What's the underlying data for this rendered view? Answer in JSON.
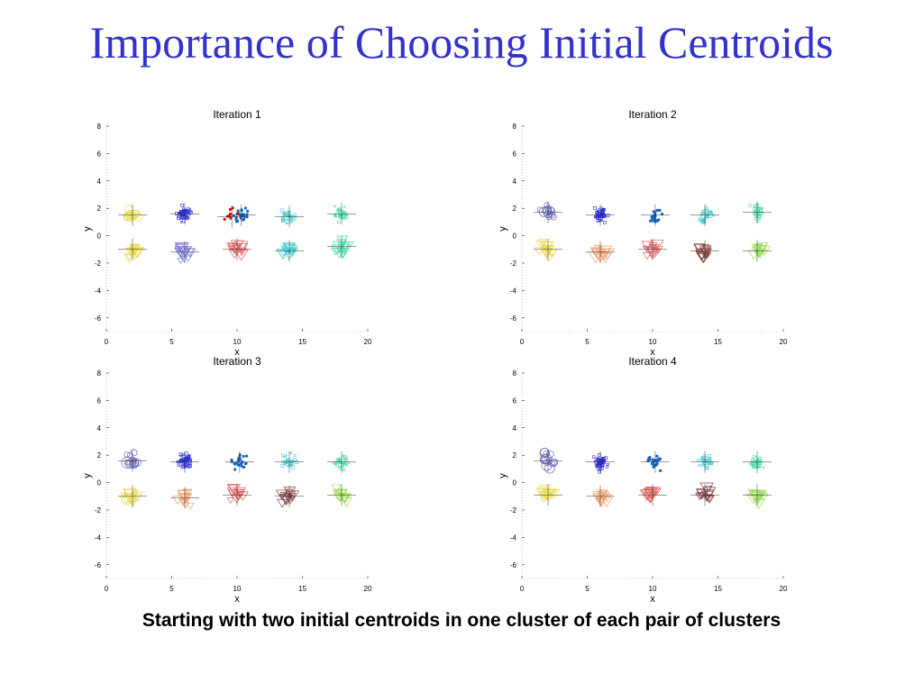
{
  "slide": {
    "title": "Importance of Choosing Initial Centroids",
    "caption": "Starting with two initial centroids in one cluster of each pair of clusters"
  },
  "chart_data": [
    {
      "type": "scatter",
      "title": "Iteration 1",
      "xlabel": "x",
      "ylabel": "y",
      "xlim": [
        0,
        20
      ],
      "ylim": [
        -7,
        8
      ],
      "xticks": [
        "0",
        "5",
        "10",
        "15",
        "20"
      ],
      "yticks": [
        "-6",
        "-4",
        "-2",
        "0",
        "2",
        "4",
        "6",
        "8"
      ],
      "clusters": [
        {
          "color": "#e8d84a",
          "marker": "circle",
          "center": [
            2,
            1.5
          ],
          "count": 14
        },
        {
          "color": "#e8d84a",
          "marker": "triangle",
          "center": [
            2,
            -1
          ],
          "count": 14
        },
        {
          "color": "#2a2ad8",
          "marker": "point",
          "center": [
            6,
            1.6
          ],
          "count": 50
        },
        {
          "color": "#7777dd",
          "marker": "triangle",
          "center": [
            6,
            -1.2
          ],
          "count": 14
        },
        {
          "color": "#1565c0",
          "marker": "dot",
          "center": [
            10.3,
            1.5
          ],
          "count": 22
        },
        {
          "color": "#dd0000",
          "marker": "dot",
          "center": [
            9.6,
            1.4
          ],
          "count": 8
        },
        {
          "color": "#e06060",
          "marker": "triangle",
          "center": [
            10,
            -1
          ],
          "count": 14
        },
        {
          "color": "#44cccc",
          "marker": "point",
          "center": [
            14,
            1.4
          ],
          "count": 30
        },
        {
          "color": "#44cccc",
          "marker": "triangle",
          "center": [
            14,
            -1.1
          ],
          "count": 14
        },
        {
          "color": "#44ddaa",
          "marker": "point",
          "center": [
            18,
            1.6
          ],
          "count": 30
        },
        {
          "color": "#44ddaa",
          "marker": "triangle",
          "center": [
            18,
            -0.8
          ],
          "count": 14
        }
      ]
    },
    {
      "type": "scatter",
      "title": "Iteration 2",
      "xlabel": "x",
      "ylabel": "y",
      "xlim": [
        0,
        20
      ],
      "ylim": [
        -7,
        8
      ],
      "xticks": [
        "0",
        "5",
        "10",
        "15",
        "20"
      ],
      "yticks": [
        "-6",
        "-4",
        "-2",
        "0",
        "2",
        "4",
        "6",
        "8"
      ],
      "clusters": [
        {
          "color": "#6666bb",
          "marker": "circle",
          "center": [
            2,
            1.7
          ],
          "count": 14
        },
        {
          "color": "#e8d84a",
          "marker": "triangle",
          "center": [
            2,
            -1
          ],
          "count": 14
        },
        {
          "color": "#2a2ad8",
          "marker": "point",
          "center": [
            6,
            1.5
          ],
          "count": 50
        },
        {
          "color": "#f0a070",
          "marker": "triangle",
          "center": [
            6,
            -1.2
          ],
          "count": 14
        },
        {
          "color": "#1565c0",
          "marker": "dot",
          "center": [
            10.2,
            1.5
          ],
          "count": 24
        },
        {
          "color": "#e06060",
          "marker": "triangle",
          "center": [
            10,
            -1
          ],
          "count": 14
        },
        {
          "color": "#44cccc",
          "marker": "point",
          "center": [
            14,
            1.5
          ],
          "count": 30
        },
        {
          "color": "#884444",
          "marker": "triangle",
          "center": [
            14,
            -1.1
          ],
          "count": 14
        },
        {
          "color": "#44ddaa",
          "marker": "point",
          "center": [
            18,
            1.7
          ],
          "count": 30
        },
        {
          "color": "#99dd55",
          "marker": "triangle",
          "center": [
            18,
            -1.1
          ],
          "count": 14
        }
      ]
    },
    {
      "type": "scatter",
      "title": "Iteration 3",
      "xlabel": "x",
      "ylabel": "y",
      "xlim": [
        0,
        20
      ],
      "ylim": [
        -7,
        8
      ],
      "xticks": [
        "0",
        "5",
        "10",
        "15",
        "20"
      ],
      "yticks": [
        "-6",
        "-4",
        "-2",
        "0",
        "2",
        "4",
        "6",
        "8"
      ],
      "clusters": [
        {
          "color": "#6666bb",
          "marker": "circle",
          "center": [
            2,
            1.6
          ],
          "count": 14
        },
        {
          "color": "#e8d84a",
          "marker": "triangle",
          "center": [
            2,
            -1
          ],
          "count": 14
        },
        {
          "color": "#2a2ad8",
          "marker": "point",
          "center": [
            6,
            1.5
          ],
          "count": 50
        },
        {
          "color": "#f0a070",
          "marker": "triangle",
          "center": [
            6,
            -1.1
          ],
          "count": 14
        },
        {
          "color": "#1565c0",
          "marker": "dot",
          "center": [
            10.2,
            1.5
          ],
          "count": 24
        },
        {
          "color": "#e06060",
          "marker": "triangle",
          "center": [
            10,
            -0.9
          ],
          "count": 14
        },
        {
          "color": "#44cccc",
          "marker": "point",
          "center": [
            14,
            1.5
          ],
          "count": 30
        },
        {
          "color": "#884444",
          "marker": "triangle",
          "center": [
            14,
            -1
          ],
          "count": 14
        },
        {
          "color": "#44ddaa",
          "marker": "point",
          "center": [
            18,
            1.5
          ],
          "count": 30
        },
        {
          "color": "#99dd55",
          "marker": "triangle",
          "center": [
            18,
            -0.9
          ],
          "count": 14
        }
      ]
    },
    {
      "type": "scatter",
      "title": "Iteration 4",
      "xlabel": "x",
      "ylabel": "y",
      "xlim": [
        0,
        20
      ],
      "ylim": [
        -7,
        8
      ],
      "xticks": [
        "0",
        "5",
        "10",
        "15",
        "20"
      ],
      "yticks": [
        "-6",
        "-4",
        "-2",
        "0",
        "2",
        "4",
        "6",
        "8"
      ],
      "clusters": [
        {
          "color": "#6666bb",
          "marker": "circle",
          "center": [
            2,
            1.6
          ],
          "count": 14
        },
        {
          "color": "#e8d84a",
          "marker": "triangle",
          "center": [
            2,
            -0.9
          ],
          "count": 14
        },
        {
          "color": "#2a2ad8",
          "marker": "point",
          "center": [
            6,
            1.5
          ],
          "count": 50
        },
        {
          "color": "#f0a070",
          "marker": "triangle",
          "center": [
            6,
            -1
          ],
          "count": 14
        },
        {
          "color": "#1565c0",
          "marker": "dot",
          "center": [
            10.2,
            1.5
          ],
          "count": 24
        },
        {
          "color": "#e06060",
          "marker": "triangle",
          "center": [
            10,
            -0.9
          ],
          "count": 14
        },
        {
          "color": "#44cccc",
          "marker": "point",
          "center": [
            14,
            1.5
          ],
          "count": 30
        },
        {
          "color": "#884444",
          "marker": "triangle",
          "center": [
            14,
            -0.9
          ],
          "count": 14
        },
        {
          "color": "#44ddaa",
          "marker": "point",
          "center": [
            18,
            1.5
          ],
          "count": 30
        },
        {
          "color": "#99dd55",
          "marker": "triangle",
          "center": [
            18,
            -0.9
          ],
          "count": 14
        }
      ]
    }
  ]
}
